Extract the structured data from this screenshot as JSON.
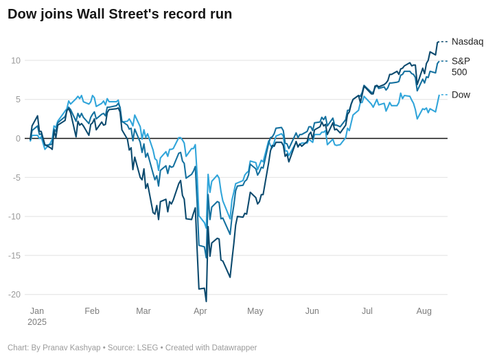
{
  "header": {
    "title": "Dow joins Wall Street's record run"
  },
  "footer": {
    "credit": "Chart: By Pranav Kashyap • Source: LSEG • Created with Datawrapper"
  },
  "colors": {
    "background": "#ffffff",
    "title_text": "#161616",
    "grid_line": "#e0e0e0",
    "zero_line": "#111111",
    "y_tick_text": "#9a9a9a",
    "x_tick_text": "#7c7c7c",
    "legend_text": "#222222",
    "credit_text": "#9b9b9b",
    "nasdaq_line": "#0c4a6e",
    "sp500_line": "#15719f",
    "dow_line": "#31a5da"
  },
  "chart_data": {
    "type": "line",
    "title": "Dow joins Wall Street's record run",
    "xlabel": "",
    "ylabel": "",
    "x_unit": "calendar days since Jan 2, 2025",
    "ylim": [
      -22,
      13
    ],
    "grid": "horizontal",
    "legend_position": "right of line ends",
    "y_ticks": [
      10,
      5,
      0,
      -5,
      -10,
      -15,
      -20
    ],
    "x_ticks": [
      {
        "label": "Jan",
        "sublabel": "2025",
        "day": 0
      },
      {
        "label": "Feb",
        "day": 30
      },
      {
        "label": "Mar",
        "day": 58
      },
      {
        "label": "Apr",
        "day": 89
      },
      {
        "label": "May",
        "day": 119
      },
      {
        "label": "Jun",
        "day": 150
      },
      {
        "label": "Jul",
        "day": 180
      },
      {
        "label": "Aug",
        "day": 211
      }
    ],
    "days": [
      0,
      1,
      4,
      5,
      6,
      8,
      11,
      12,
      13,
      14,
      15,
      19,
      20,
      21,
      22,
      25,
      26,
      27,
      28,
      29,
      32,
      33,
      34,
      35,
      36,
      39,
      40,
      41,
      42,
      43,
      47,
      48,
      49,
      50,
      53,
      54,
      55,
      56,
      57,
      60,
      61,
      62,
      63,
      64,
      67,
      68,
      69,
      70,
      71,
      74,
      75,
      76,
      77,
      78,
      81,
      82,
      83,
      84,
      85,
      88,
      89,
      90,
      91,
      92,
      95,
      96,
      97,
      98,
      99,
      102,
      103,
      104,
      105,
      109,
      110,
      111,
      112,
      113,
      116,
      117,
      118,
      119,
      120,
      123,
      124,
      125,
      126,
      127,
      130,
      131,
      132,
      133,
      134,
      137,
      138,
      139,
      140,
      141,
      145,
      146,
      147,
      148,
      151,
      152,
      153,
      154,
      155,
      158,
      159,
      160,
      161,
      162,
      165,
      166,
      167,
      169,
      172,
      173,
      174,
      175,
      176,
      179,
      180,
      181,
      182,
      186,
      187,
      188,
      189,
      190,
      193,
      194,
      195,
      196,
      197,
      200,
      201,
      202,
      203,
      204,
      207,
      208,
      209,
      210,
      211,
      214,
      215,
      216,
      217,
      218,
      221,
      222,
      223
    ],
    "series": [
      {
        "name": "Dow",
        "label_lines": [
          "Dow"
        ],
        "color": "#31a5da",
        "values": [
          -0.4,
          0.4,
          0.4,
          0.0,
          0.2,
          -1.4,
          -0.6,
          -0.1,
          1.6,
          1.4,
          2.2,
          3.5,
          3.8,
          4.8,
          4.4,
          5.1,
          5.4,
          5.1,
          5.5,
          4.7,
          4.4,
          4.7,
          5.5,
          5.2,
          4.1,
          4.5,
          4.8,
          4.3,
          5.1,
          4.7,
          4.7,
          4.9,
          3.8,
          2.1,
          2.2,
          2.5,
          2.1,
          1.6,
          3.0,
          1.5,
          -0.1,
          1.1,
          0.1,
          0.6,
          -1.5,
          -2.6,
          -2.8,
          -4.1,
          -2.5,
          -1.7,
          -2.3,
          -1.4,
          -1.4,
          -1.3,
          0.1,
          0.1,
          -0.2,
          -0.6,
          -2.3,
          -1.3,
          -1.3,
          -0.8,
          -4.7,
          -9.9,
          -10.8,
          -11.5,
          -4.6,
          -6.9,
          -5.5,
          -4.7,
          -5.1,
          -6.8,
          -8.0,
          -10.3,
          -7.9,
          -6.9,
          -5.8,
          -5.7,
          -5.4,
          -4.7,
          -4.4,
          -4.2,
          -2.9,
          -3.1,
          -4.0,
          -3.4,
          -2.8,
          -3.0,
          -0.3,
          -0.9,
          -1.2,
          -0.5,
          0.3,
          0.6,
          0.3,
          -1.6,
          -1.6,
          -2.2,
          -0.5,
          -1.0,
          -0.8,
          -0.6,
          -0.6,
          -0.1,
          -0.3,
          -0.5,
          0.5,
          0.5,
          0.8,
          0.8,
          1.0,
          -0.8,
          -0.1,
          -0.8,
          -0.9,
          -0.8,
          0.1,
          1.3,
          1.0,
          2.0,
          3.0,
          3.6,
          4.6,
          4.6,
          5.4,
          4.4,
          4.0,
          4.5,
          5.0,
          4.3,
          4.5,
          3.5,
          4.0,
          4.6,
          4.2,
          4.2,
          4.6,
          5.8,
          5.1,
          5.5,
          5.4,
          4.9,
          4.5,
          3.7,
          2.5,
          3.8,
          3.7,
          3.9,
          3.3,
          3.8,
          3.4,
          4.5,
          5.6
        ]
      },
      {
        "name": "S&P 500",
        "label_lines": [
          "S&P",
          "500"
        ],
        "color": "#15719f",
        "values": [
          -0.2,
          1.0,
          1.6,
          0.5,
          0.6,
          -0.9,
          -0.8,
          -0.7,
          1.2,
          0.9,
          2.0,
          2.8,
          3.5,
          4.0,
          3.7,
          2.2,
          3.2,
          2.7,
          3.2,
          2.7,
          1.9,
          2.7,
          3.1,
          3.4,
          2.5,
          3.1,
          3.2,
          2.9,
          4.0,
          4.0,
          4.2,
          4.5,
          4.0,
          2.2,
          1.7,
          1.2,
          1.3,
          -0.3,
          1.2,
          -0.5,
          -1.8,
          -0.7,
          -2.4,
          -1.9,
          -4.5,
          -5.3,
          -4.8,
          -6.1,
          -4.1,
          -3.5,
          -4.5,
          -3.5,
          -3.7,
          -3.6,
          -1.9,
          -1.8,
          -2.9,
          -3.2,
          -5.1,
          -4.6,
          -4.2,
          -3.6,
          -8.3,
          -13.7,
          -13.9,
          -15.3,
          -7.2,
          -10.4,
          -8.8,
          -8.1,
          -8.2,
          -10.3,
          -10.2,
          -12.3,
          -10.1,
          -8.6,
          -6.7,
          -6.1,
          -6.0,
          -5.5,
          -5.3,
          -4.7,
          -3.3,
          -3.9,
          -4.7,
          -4.3,
          -3.7,
          -3.8,
          -0.6,
          0.1,
          0.2,
          0.6,
          1.3,
          1.4,
          1.0,
          -0.6,
          -0.7,
          -1.3,
          0.7,
          0.1,
          0.5,
          0.5,
          0.9,
          1.5,
          1.5,
          1.0,
          2.0,
          2.1,
          2.7,
          2.4,
          2.8,
          1.6,
          2.6,
          1.7,
          1.7,
          1.5,
          2.4,
          3.6,
          3.6,
          4.4,
          5.0,
          5.5,
          5.4,
          5.9,
          6.8,
          5.9,
          5.9,
          6.5,
          6.8,
          6.4,
          6.6,
          6.2,
          6.5,
          7.1,
          7.1,
          7.2,
          7.3,
          8.1,
          8.2,
          8.6,
          8.6,
          8.3,
          8.2,
          7.8,
          6.1,
          7.6,
          7.1,
          7.9,
          7.8,
          8.6,
          8.4,
          9.6,
          9.9
        ]
      },
      {
        "name": "Nasdaq",
        "label_lines": [
          "Nasdaq"
        ],
        "color": "#0c4a6e",
        "values": [
          -0.2,
          1.6,
          2.9,
          0.9,
          0.9,
          -0.8,
          -1.2,
          -1.4,
          1.0,
          0.1,
          1.7,
          2.3,
          3.6,
          3.8,
          3.3,
          0.2,
          2.2,
          1.7,
          1.9,
          1.6,
          0.4,
          1.8,
          2.0,
          2.5,
          1.1,
          2.1,
          1.7,
          1.8,
          3.3,
          3.7,
          3.8,
          3.9,
          3.4,
          1.1,
          -0.1,
          -1.5,
          -1.2,
          -4.0,
          -2.4,
          -5.0,
          -5.3,
          -3.9,
          -6.4,
          -5.8,
          -9.5,
          -9.7,
          -8.6,
          -10.4,
          -8.1,
          -7.8,
          -9.4,
          -8.1,
          -8.4,
          -7.9,
          -5.8,
          -5.4,
          -7.3,
          -7.8,
          -10.3,
          -10.4,
          -9.6,
          -8.9,
          -14.3,
          -19.3,
          -19.2,
          -20.9,
          -11.3,
          -15.1,
          -13.4,
          -12.8,
          -12.9,
          -15.6,
          -15.7,
          -17.8,
          -15.6,
          -13.5,
          -11.1,
          -10.0,
          -10.1,
          -9.6,
          -9.7,
          -8.3,
          -6.9,
          -7.6,
          -8.4,
          -8.1,
          -7.2,
          -7.2,
          -3.1,
          -1.6,
          -0.9,
          -1.0,
          -0.5,
          -0.5,
          -0.9,
          -2.3,
          -2.0,
          -3.0,
          -0.4,
          -1.1,
          -0.7,
          -1.0,
          -0.4,
          0.5,
          0.8,
          -0.1,
          1.1,
          1.5,
          2.1,
          1.6,
          1.8,
          0.5,
          2.0,
          1.1,
          1.2,
          0.7,
          1.7,
          3.1,
          3.4,
          4.4,
          5.0,
          5.5,
          4.6,
          5.6,
          6.7,
          5.7,
          5.7,
          6.7,
          6.8,
          6.6,
          6.9,
          7.1,
          7.4,
          8.2,
          8.2,
          8.6,
          8.2,
          8.9,
          9.0,
          9.3,
          9.7,
          9.3,
          9.4,
          9.4,
          6.9,
          9.0,
          8.3,
          9.6,
          10.0,
          11.1,
          10.7,
          12.3,
          12.4
        ]
      }
    ]
  }
}
